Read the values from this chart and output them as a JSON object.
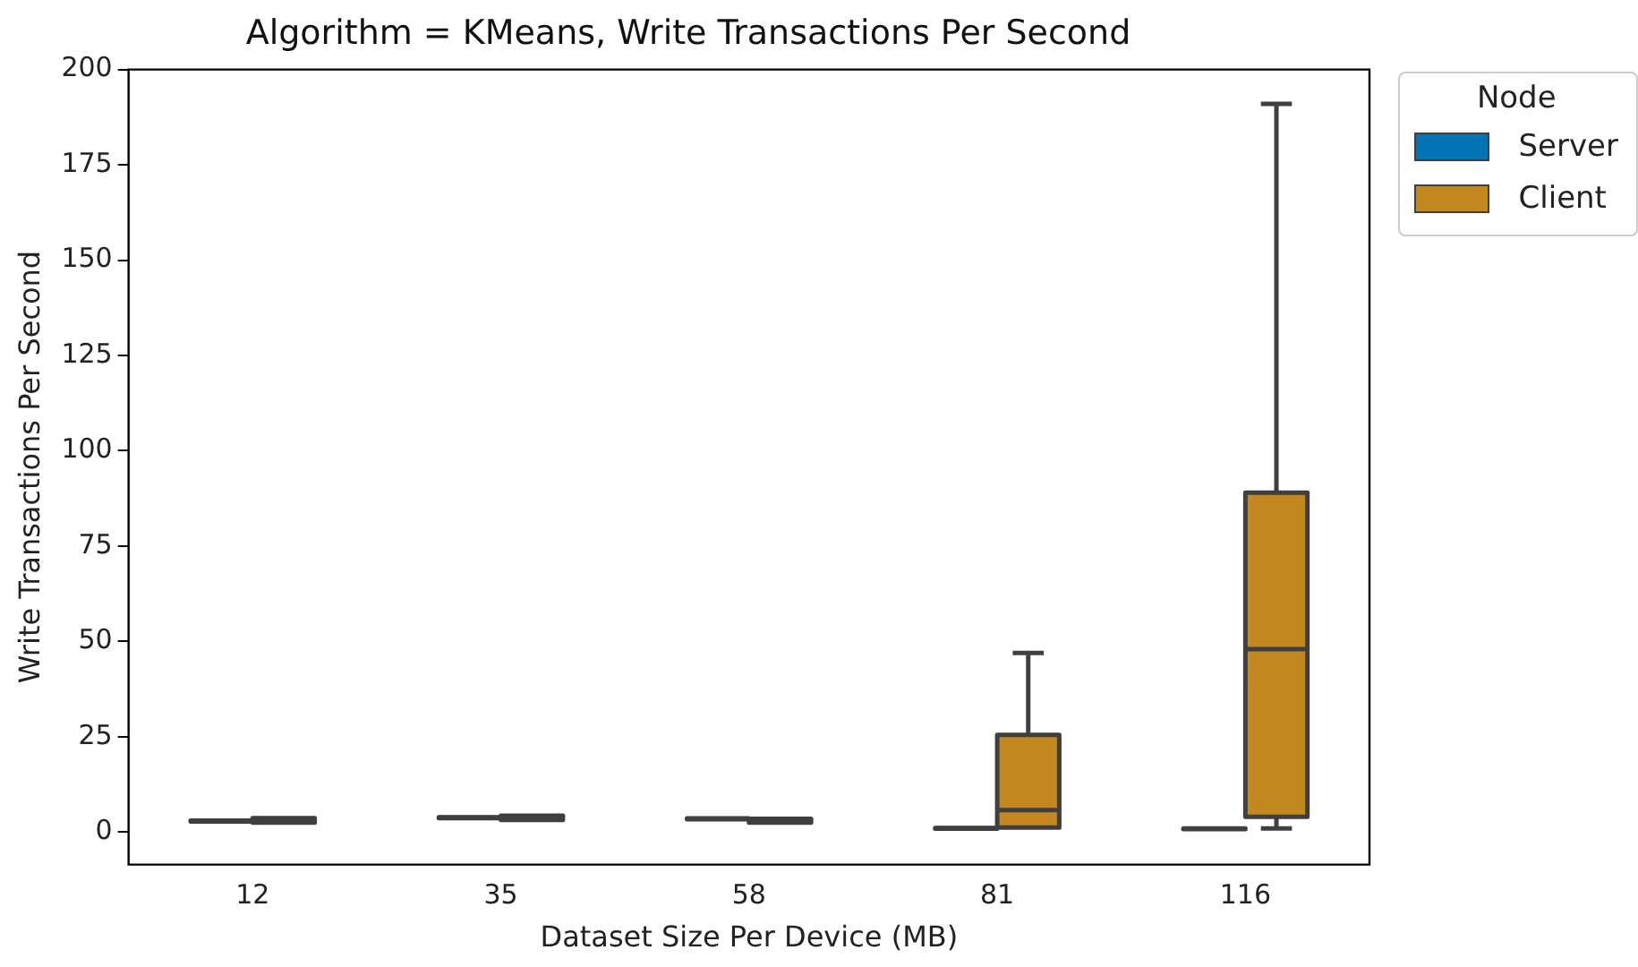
{
  "chart_data": {
    "type": "box",
    "title": "Algorithm = KMeans, Write Transactions Per Second",
    "xlabel": "Dataset Size Per Device (MB)",
    "ylabel": "Write Transactions Per Second",
    "categories": [
      "12",
      "35",
      "58",
      "81",
      "116"
    ],
    "ylim": [
      -8.5,
      200
    ],
    "yticks": [
      0,
      25,
      50,
      75,
      100,
      125,
      150,
      175,
      200
    ],
    "legend": "top right",
    "legend_title": "Node",
    "series": [
      {
        "name": "Server",
        "color": "#0173b2",
        "boxes": [
          {
            "low": 2.8,
            "q1": 2.8,
            "median": 2.9,
            "q3": 3.0,
            "high": 3.0
          },
          {
            "low": 3.7,
            "q1": 3.7,
            "median": 3.8,
            "q3": 3.9,
            "high": 3.9
          },
          {
            "low": 3.4,
            "q1": 3.4,
            "median": 3.5,
            "q3": 3.6,
            "high": 3.6
          },
          {
            "low": 0.9,
            "q1": 0.9,
            "median": 1.0,
            "q3": 1.1,
            "high": 1.1
          },
          {
            "low": 0.8,
            "q1": 0.8,
            "median": 0.9,
            "q3": 1.0,
            "high": 1.0
          }
        ]
      },
      {
        "name": "Client",
        "color": "#c38820",
        "boxes": [
          {
            "low": 2.5,
            "q1": 2.5,
            "median": 3.0,
            "q3": 3.7,
            "high": 3.7
          },
          {
            "low": 3.2,
            "q1": 3.2,
            "median": 3.7,
            "q3": 4.3,
            "high": 4.3
          },
          {
            "low": 2.5,
            "q1": 2.5,
            "median": 3.0,
            "q3": 3.5,
            "high": 3.5
          },
          {
            "low": 1.2,
            "q1": 1.2,
            "median": 5.8,
            "q3": 25.5,
            "high": 47
          },
          {
            "low": 1.0,
            "q1": 4,
            "median": 48,
            "q3": 89,
            "high": 191
          }
        ]
      }
    ]
  }
}
